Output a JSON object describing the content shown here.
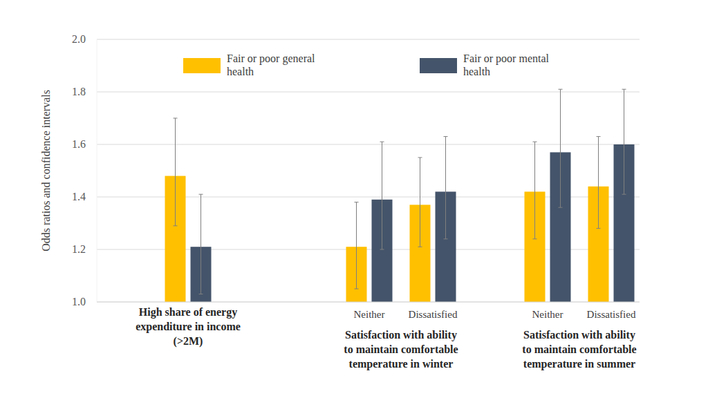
{
  "chart_data": {
    "type": "bar",
    "y_label": "Odds ratios and confidence intervals",
    "categories": [
      null,
      "Neither",
      "Dissatisfied",
      "Neither",
      "Dissatisfied"
    ],
    "groups": [
      "High share of energy expenditure in income (>2M)",
      "Satisfaction with ability to maintain comfortable temperature in winter",
      "Satisfaction with ability to maintain comfortable temperature in winter",
      "Satisfaction with ability to maintain comfortable temperature in summer",
      "Satisfaction with ability to maintain comfortable temperature in summer"
    ],
    "series": [
      {
        "name": "Fair or poor general health",
        "color": "#FFC000",
        "values": [
          1.48,
          1.21,
          1.37,
          1.42,
          1.44
        ],
        "ci_low": [
          1.29,
          1.05,
          1.21,
          1.24,
          1.28
        ],
        "ci_high": [
          1.7,
          1.38,
          1.55,
          1.61,
          1.63
        ]
      },
      {
        "name": "Fair or poor mental health",
        "color": "#44546A",
        "values": [
          1.21,
          1.39,
          1.42,
          1.57,
          1.6
        ],
        "ci_low": [
          1.03,
          1.2,
          1.24,
          1.36,
          1.41
        ],
        "ci_high": [
          1.41,
          1.61,
          1.63,
          1.81,
          1.81
        ]
      }
    ],
    "ylim": [
      1,
      2
    ],
    "yticks": [
      {
        "value": 1,
        "label": "1.0"
      },
      1.2,
      1.4,
      1.6,
      1.8,
      {
        "value": 2,
        "label": "2.0"
      }
    ],
    "grid": true,
    "legend": "top"
  }
}
